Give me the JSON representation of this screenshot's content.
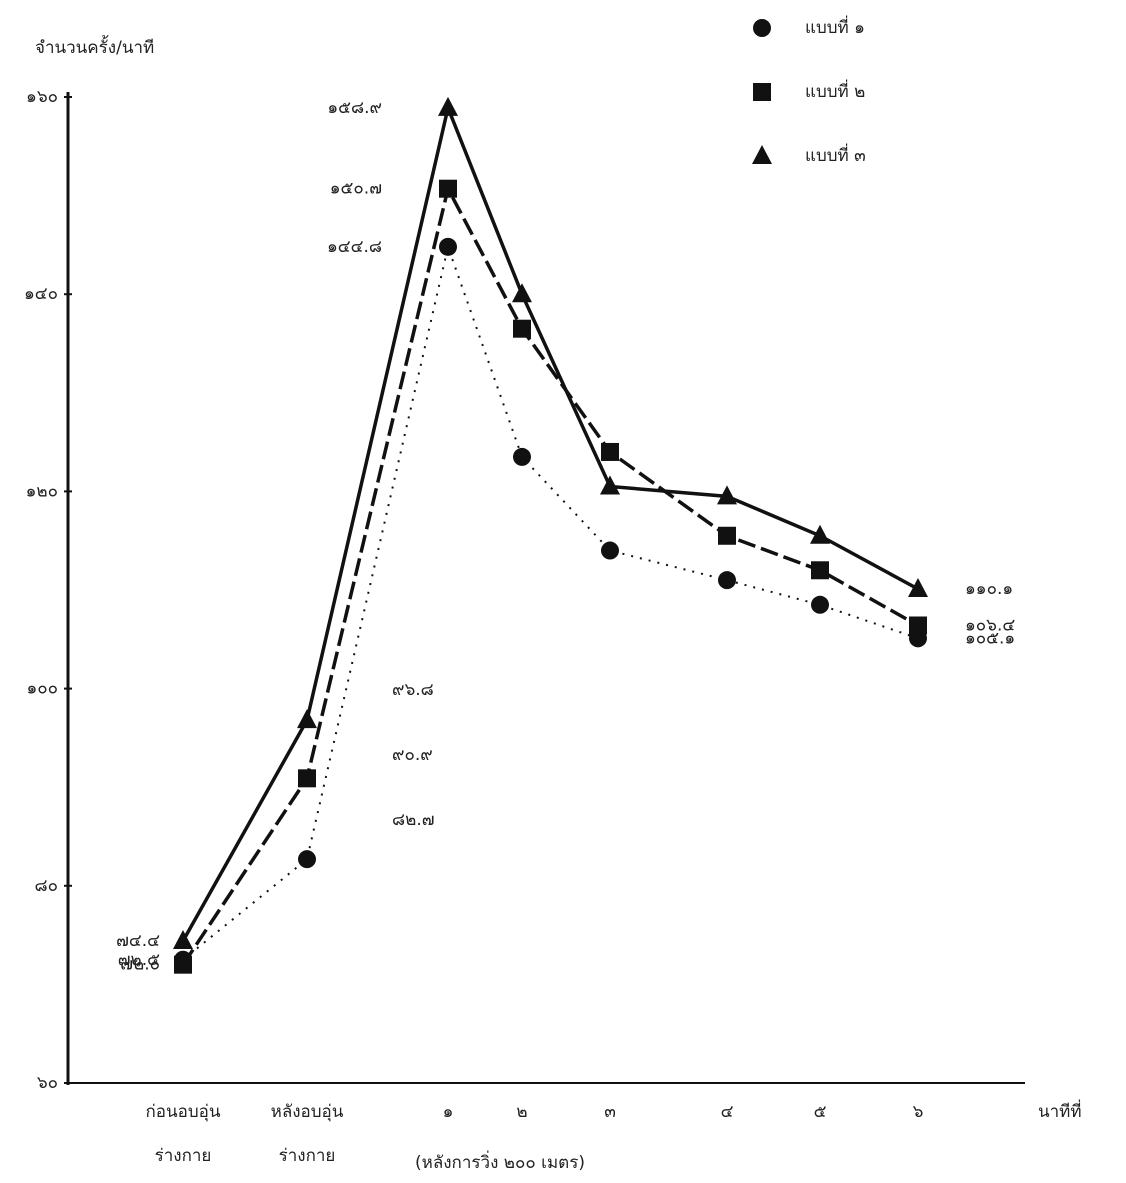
{
  "chart_data": {
    "type": "line",
    "y_label": "จำนวนครั้ง/นาที",
    "x_label": "นาทีที่",
    "x_note": "(หลังการวิ่ง ๒๐๐ เมตร)",
    "categories": [
      "ก่อนอบอุ่น ร่างกาย",
      "หลังอบอุ่น ร่างกาย",
      "๑",
      "๒",
      "๓",
      "๔",
      "๕",
      "๖"
    ],
    "ylim": [
      60,
      160
    ],
    "yticks": [
      {
        "value": 60,
        "label": "๖๐"
      },
      {
        "value": 80,
        "label": "๘๐"
      },
      {
        "value": 100,
        "label": "๑๐๐"
      },
      {
        "value": 120,
        "label": "๑๒๐"
      },
      {
        "value": 140,
        "label": "๑๔๐"
      },
      {
        "value": 160,
        "label": "๑๖๐"
      }
    ],
    "grid": false,
    "legend": "top-right",
    "series": [
      {
        "name": "แบบที่ ๑",
        "color": "#111111",
        "marker": "circle",
        "dash": "dotted",
        "values": [
          72.5,
          82.7,
          144.8,
          123.5,
          114,
          111,
          108.5,
          105.1
        ],
        "value_labels": [
          "๗๒.๕",
          "๘๒.๗",
          "๑๔๔.๘",
          null,
          null,
          null,
          null,
          "๑๐๕.๑"
        ]
      },
      {
        "name": "แบบที่ ๒",
        "color": "#111111",
        "marker": "square",
        "dash": "dashed",
        "values": [
          72.0,
          90.9,
          150.7,
          136.5,
          124,
          115.5,
          112,
          106.4
        ],
        "value_labels": [
          "๗๒.๐",
          "๙๐.๙",
          "๑๕๐.๗",
          null,
          null,
          null,
          null,
          "๑๐๖.๔"
        ]
      },
      {
        "name": "แบบที่ ๓",
        "color": "#111111",
        "marker": "triangle",
        "dash": "solid",
        "values": [
          74.4,
          96.8,
          158.9,
          140,
          120.5,
          119.5,
          115.5,
          110.1
        ],
        "value_labels": [
          "๗๔.๔",
          "๙๖.๘",
          "๑๕๘.๙",
          null,
          null,
          null,
          null,
          "๑๑๐.๑"
        ]
      }
    ]
  }
}
